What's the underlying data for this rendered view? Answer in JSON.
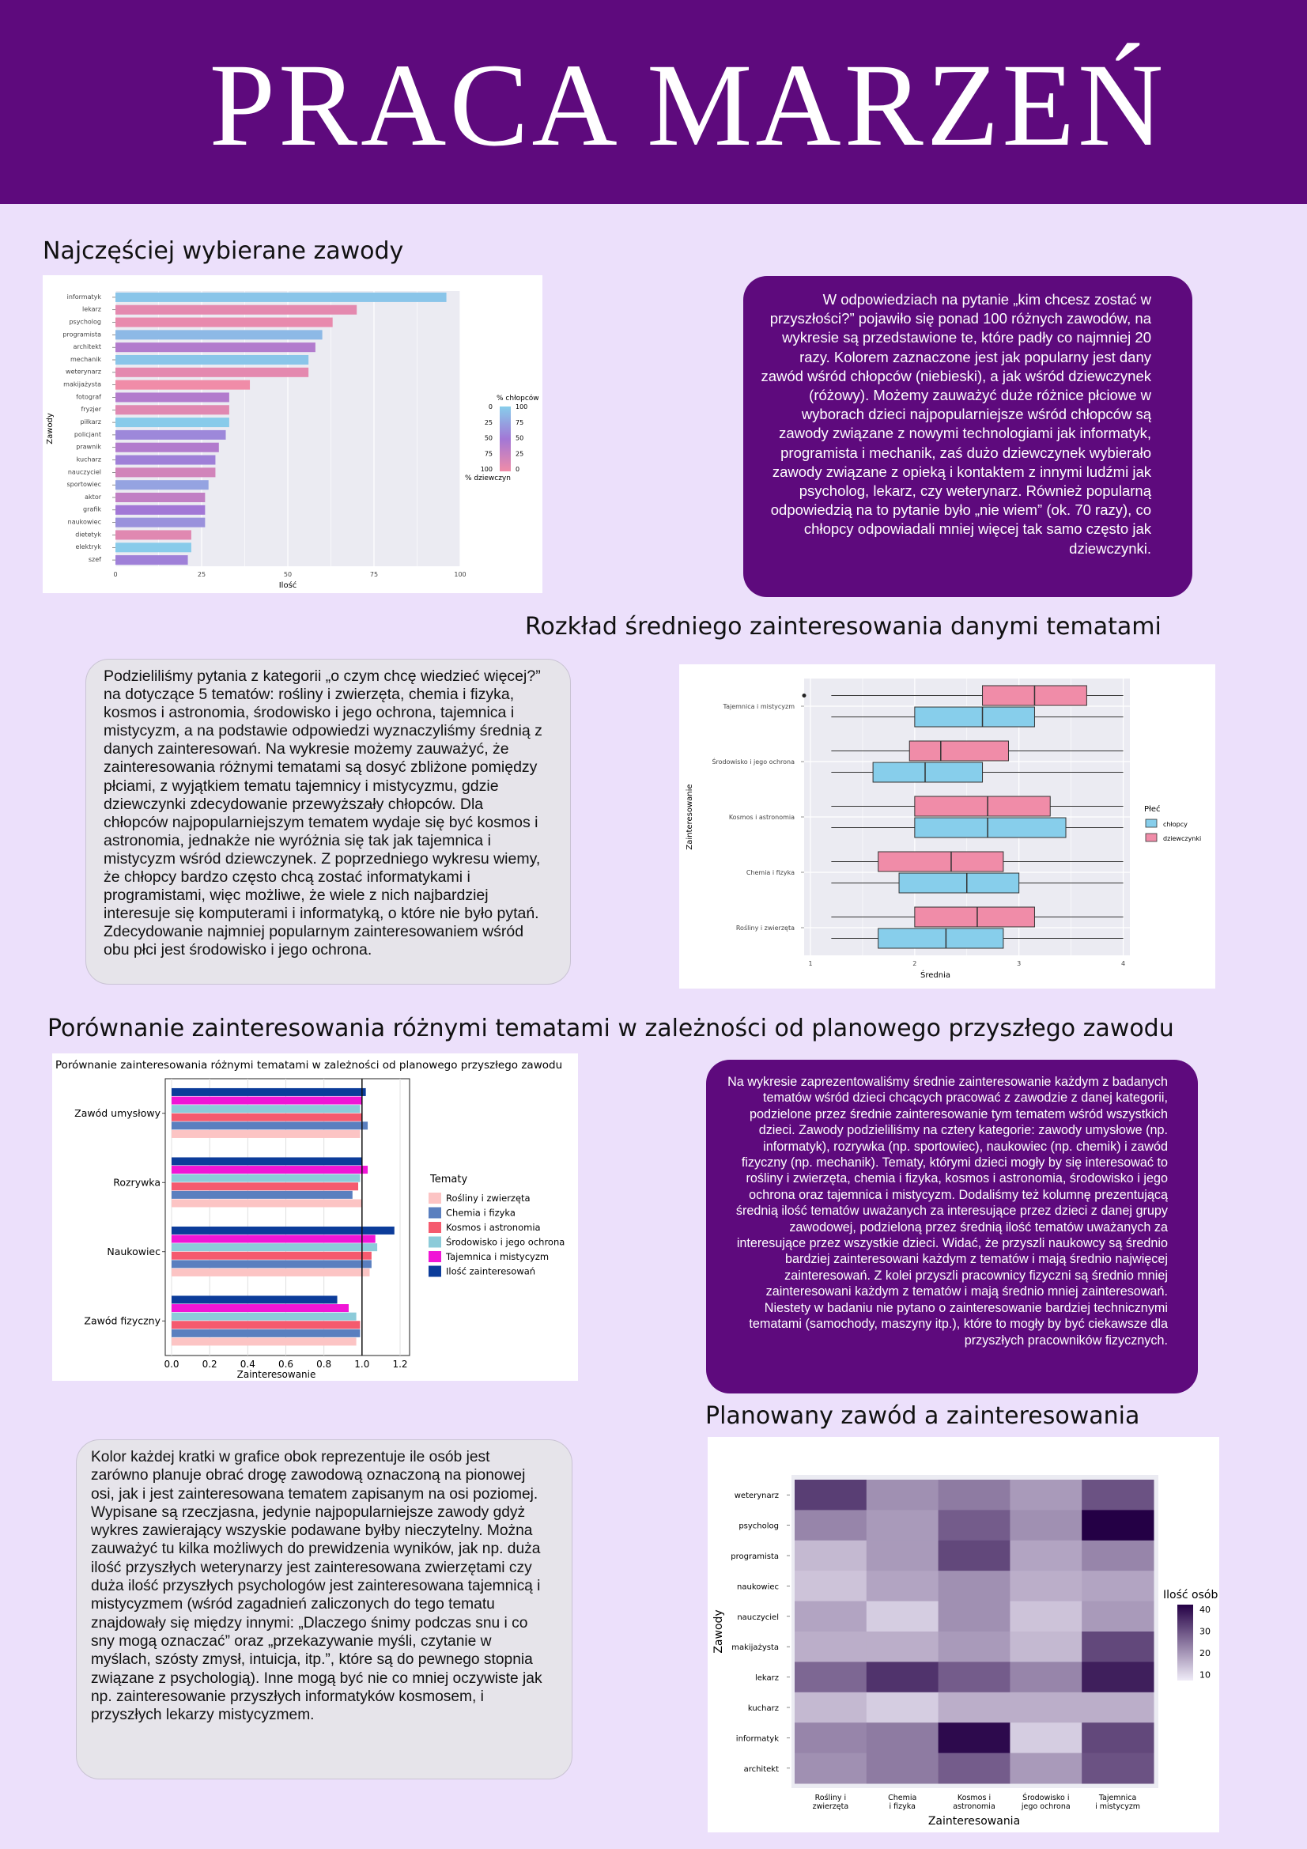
{
  "title": "PRACA MARZEŃ",
  "sections": {
    "s1": "Najczęściej wybierane zawody",
    "s2": "Rozkład średniego zainteresowania danymi tematami",
    "s3": "Porównanie zainteresowania różnymi tematami w zależności od planowego przyszłego zawodu",
    "s4": "Planowany zawód a zainteresowania"
  },
  "texts": {
    "t1": "W odpowiedziach na pytanie „kim chcesz zostać w przyszłości?” pojawiło się ponad 100 różnych zawodów, na wykresie są przedstawione te, które padły co najmniej 20 razy. Kolorem zaznaczone jest jak popularny jest dany zawód wśród chłopców (niebieski), a jak wśród dziewczynek (różowy). Możemy zauważyć duże różnice płciowe w wyborach dzieci najpopularniejsze wśród chłopców są zawody związane z nowymi technologiami jak informatyk, programista i mechanik, zaś dużo dziewczynek wybierało zawody związane z opieką i kontaktem z innymi ludźmi jak psycholog, lekarz, czy weterynarz. Również popularną odpowiedzią na to pytanie było „nie wiem” (ok. 70 razy), co chłopcy odpowiadali mniej więcej tak samo często jak dziewczynki.",
    "t2": "Podzieliliśmy pytania z kategorii „o czym chcę wiedzieć więcej?” na dotyczące 5 tematów: rośliny i zwierzęta, chemia i fizyka, kosmos i astronomia, środowisko i jego ochrona, tajemnica i mistycyzm, a na podstawie odpowiedzi wyznaczyliśmy średnią z danych zainteresowań. Na wykresie możemy zauważyć, że zainteresowania różnymi tematami są dosyć zbliżone pomiędzy płciami, z wyjątkiem tematu tajemnicy i mistycyzmu, gdzie dziewczynki zdecydowanie przewyższały chłopców. Dla chłopców najpopularniejszym tematem wydaje się być kosmos i astronomia, jednakże nie wyróżnia się tak jak tajemnica i mistycyzm wśród dziewczynek. Z poprzedniego wykresu wiemy, że chłopcy bardzo często chcą zostać informatykami i programistami, więc możliwe, że wiele z nich najbardziej interesuje się komputerami i informatyką, o które nie było pytań. Zdecydowanie najmniej popularnym zainteresowaniem wśród obu płci jest środowisko i jego ochrona.",
    "t3": "Na wykresie zaprezentowaliśmy średnie zainteresowanie każdym z badanych tematów wśród dzieci  chcących pracować z zawodzie z danej kategorii, podzielone przez średnie zainteresowanie tym tematem wśród wszystkich dzieci. Zawody podzieliliśmy na cztery kategorie: zawody umysłowe (np. informatyk), rozrywka (np. sportowiec), naukowiec (np. chemik) i zawód fizyczny (np. mechanik). Tematy, którymi dzieci mogły by się interesować to rośliny i zwierzęta, chemia i fizyka, kosmos i astronomia, środowisko i jego ochrona oraz tajemnica i mistycyzm. Dodaliśmy też kolumnę prezentującą średnią ilość tematów uważanych za interesujące przez dzieci z danej grupy zawodowej, podzieloną przez średnią ilość tematów uważanych za interesujące przez wszystkie dzieci. Widać, że przyszli naukowcy są średnio bardziej zainteresowani każdym z tematów i mają średnio najwięcej zainteresowań. Z kolei przyszli pracownicy fizyczni są średnio mniej zainteresowani każdym z tematów i mają średnio mniej zainteresowań. Niestety w badaniu nie pytano o zainteresowanie bardziej technicznymi tematami (samochody, maszyny itp.), które to mogły by być ciekawsze dla przyszłych pracowników fizycznych.",
    "t4": "Kolor każdej kratki w grafice obok reprezentuje ile osób jest zarówno planuje obrać drogę zawodową oznaczoną na pionowej osi, jak i jest zainteresowana tematem zapisanym na osi poziomej. Wypisane są rzeczjasna, jedynie najpopularniejsze zawody gdyż wykres zawierający wszyskie podawane byłby nieczytelny. Można zauważyć tu kilka możliwych do prewidzenia wyników, jak np. duża ilość przyszłych weterynarzy jest zainteresowana zwierzętami czy duża ilość przyszłych psychologów jest zainteresowana tajemnicą i mistycyzmem (wśród zagadnień zaliczonych do tego tematu znajdowały się między innymi: „Dlaczego śnimy podczas snu i co sny mogą oznaczać” oraz „przekazywanie myśli, czytanie w myślach, szósty zmysł, intuicja, itp.”, które są do pewnego stopnia związane z psychologią). Inne mogą być nie co mniej oczywiste jak np. zainteresowanie przyszłych informatyków kosmosem, i przyszłych lekarzy mistycyzmem."
  },
  "colors": {
    "banner": "#5e0a7d",
    "background": "#ece0fb",
    "boys": "#87ceeb",
    "girls": "#f08ca8"
  },
  "chart_data": [
    {
      "type": "bar",
      "orientation": "horizontal",
      "categories": [
        "informatyk",
        "lekarz",
        "psycholog",
        "programista",
        "architekt",
        "mechanik",
        "weterynarz",
        "makijażysta",
        "fotograf",
        "fryzjer",
        "piłkarz",
        "policjant",
        "prawnik",
        "kucharz",
        "nauczyciel",
        "sportowiec",
        "aktor",
        "grafik",
        "naukowiec",
        "dietetyk",
        "elektryk",
        "szef"
      ],
      "values": [
        96,
        70,
        63,
        60,
        58,
        56,
        56,
        39,
        33,
        33,
        33,
        32,
        30,
        29,
        29,
        27,
        26,
        26,
        26,
        22,
        22,
        21
      ],
      "boys_pct": [
        95,
        8,
        5,
        88,
        40,
        95,
        8,
        0,
        40,
        10,
        98,
        60,
        40,
        55,
        20,
        75,
        30,
        50,
        65,
        10,
        98,
        55
      ],
      "xlabel": "Ilość",
      "ylabel": "Zawody",
      "xlim": [
        0,
        100
      ],
      "xticks": [
        "0",
        "25",
        "50",
        "75",
        "100"
      ],
      "legend": {
        "top_label": "% chłopców",
        "bottom_label": "% dziewczyn",
        "left_ticks": [
          "0",
          "25",
          "50",
          "75",
          "100"
        ],
        "right_ticks": [
          "100",
          "75",
          "50",
          "25",
          "0"
        ],
        "placement": "right"
      },
      "grid": true
    },
    {
      "type": "boxplot",
      "categories": [
        "Tajemnica i mistycyzm",
        "Środowisko i jego ochrona",
        "Kosmos i astronomia",
        "Chemia i fizyka",
        "Rośliny i zwierzęta"
      ],
      "series": [
        {
          "name": "chłopcy",
          "boxes": [
            [
              1.2,
              2.0,
              2.65,
              3.15,
              4.0
            ],
            [
              1.2,
              1.6,
              2.1,
              2.65,
              4.0
            ],
            [
              1.2,
              2.0,
              2.7,
              3.45,
              4.0
            ],
            [
              1.2,
              1.85,
              2.5,
              3.0,
              4.0
            ],
            [
              1.2,
              1.65,
              2.3,
              2.85,
              4.0
            ]
          ]
        },
        {
          "name": "dziewczynki",
          "boxes": [
            [
              1.2,
              2.65,
              3.15,
              3.65,
              4.0
            ],
            [
              1.2,
              1.95,
              2.25,
              2.9,
              4.0
            ],
            [
              1.2,
              2.0,
              2.7,
              3.3,
              4.0
            ],
            [
              1.2,
              1.65,
              2.35,
              2.85,
              4.0
            ],
            [
              1.2,
              2.0,
              2.6,
              3.15,
              4.0
            ]
          ]
        }
      ],
      "outliers": [
        {
          "category": "Tajemnica i mistycyzm",
          "series": "dziewczynki",
          "value": 1.0
        }
      ],
      "xlabel": "Średnia",
      "ylabel": "Zainteresowanie",
      "xlim": [
        1,
        4
      ],
      "xticks": [
        "1",
        "2",
        "3",
        "4"
      ],
      "legend": {
        "title": "Płeć",
        "placement": "right"
      },
      "grid": true
    },
    {
      "type": "bar",
      "orientation": "horizontal",
      "title": "Porównanie zainteresowania różnymi tematami w zależności od planowego przyszłego zawodu",
      "categories": [
        "Zawód umysłowy",
        "Rozrywka",
        "Naukowiec",
        "Zawód fizyczny"
      ],
      "series": [
        {
          "name": "Rośliny i zwierzęta",
          "color": "#fcc4c4",
          "values": [
            0.99,
            1.0,
            1.04,
            0.97
          ]
        },
        {
          "name": "Chemia i fizyka",
          "color": "#5a7fbf",
          "values": [
            1.03,
            0.95,
            1.05,
            0.99
          ]
        },
        {
          "name": "Kosmos i astronomia",
          "color": "#f55a6e",
          "values": [
            1.0,
            0.98,
            1.05,
            0.99
          ]
        },
        {
          "name": "Środowisko i jego ochrona",
          "color": "#8ccbd9",
          "values": [
            0.99,
            0.99,
            1.08,
            0.97
          ]
        },
        {
          "name": "Tajemnica i mistycyzm",
          "color": "#f015d6",
          "values": [
            1.0,
            1.03,
            1.07,
            0.93
          ]
        },
        {
          "name": "Ilość zainteresowań",
          "color": "#0c3c9a",
          "values": [
            1.02,
            1.0,
            1.17,
            0.87
          ]
        }
      ],
      "xlabel": "Zainteresowanie",
      "xlim": [
        0,
        1.2
      ],
      "xticks": [
        "0.0",
        "0.2",
        "0.4",
        "0.6",
        "0.8",
        "1.0",
        "1.2"
      ],
      "legend": {
        "title": "Tematy",
        "placement": "right"
      },
      "reference_line": 1.0
    },
    {
      "type": "heatmap",
      "rows": [
        "weterynarz",
        "psycholog",
        "programista",
        "naukowiec",
        "nauczyciel",
        "makijażysta",
        "lekarz",
        "kucharz",
        "informatyk",
        "architekt"
      ],
      "columns": [
        "Rośliny i zwierzęta",
        "Chemia i fizyka",
        "Kosmos i astronomia",
        "Środowisko i jego ochrona",
        "Tajemnica i mistycyzm"
      ],
      "column_labels": [
        [
          "Rośliny i",
          "zwierzęta"
        ],
        [
          "Chemia",
          "i fizyka"
        ],
        [
          "Kosmos i",
          "astronomia"
        ],
        [
          "Środowisko i",
          "jego ochrona"
        ],
        [
          "Tajemnica",
          "i mistycyzm"
        ]
      ],
      "values": [
        [
          34,
          18,
          22,
          16,
          30
        ],
        [
          20,
          16,
          28,
          18,
          46
        ],
        [
          10,
          16,
          32,
          14,
          20
        ],
        [
          8,
          14,
          18,
          12,
          14
        ],
        [
          14,
          6,
          18,
          8,
          16
        ],
        [
          12,
          12,
          16,
          10,
          32
        ],
        [
          26,
          36,
          28,
          20,
          40
        ],
        [
          10,
          6,
          12,
          12,
          12
        ],
        [
          20,
          22,
          44,
          6,
          32
        ],
        [
          18,
          22,
          28,
          16,
          30
        ]
      ],
      "xlabel": "Zainteresowania",
      "ylabel": "Zawody",
      "legend": {
        "title": "Ilość osób",
        "ticks": [
          "40",
          "30",
          "20",
          "10"
        ],
        "placement": "right"
      },
      "color_range": [
        0,
        46
      ]
    }
  ]
}
